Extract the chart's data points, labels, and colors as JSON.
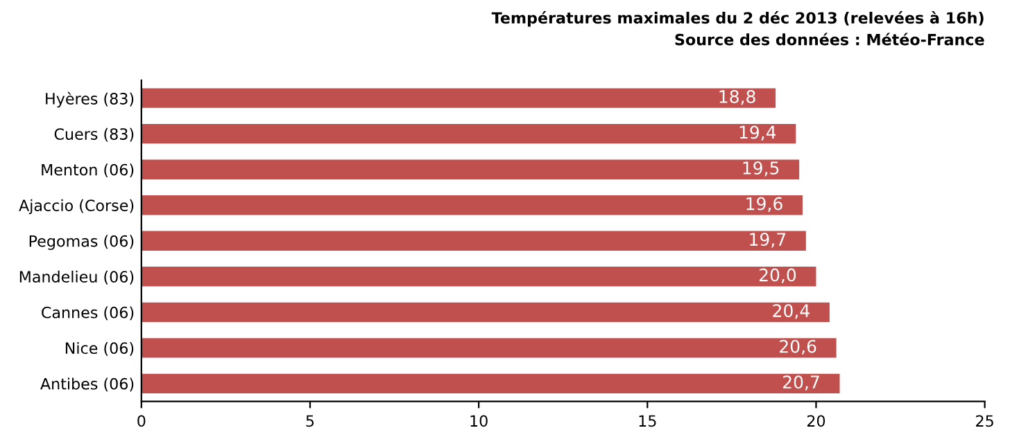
{
  "chart_data": {
    "type": "bar",
    "orientation": "horizontal",
    "title": "Températures maximales du 2 déc 2013 (relevées à 16h)",
    "annotations": [
      "Source des données : Météo-France"
    ],
    "categories": [
      "Hyères (83)",
      "Cuers (83)",
      "Menton (06)",
      "Ajaccio (Corse)",
      "Pegomas (06)",
      "Mandelieu (06)",
      "Cannes (06)",
      "Nice (06)",
      "Antibes (06)"
    ],
    "values": [
      18.8,
      19.4,
      19.5,
      19.6,
      19.7,
      20.0,
      20.4,
      20.6,
      20.7
    ],
    "value_labels": [
      "18,8",
      "19,4",
      "19,5",
      "19,6",
      "19,7",
      "20,0",
      "20,4",
      "20,6",
      "20,7"
    ],
    "color": "#c0504d",
    "xlim": [
      0,
      25
    ],
    "xticks": [
      0,
      5,
      10,
      15,
      20,
      25
    ],
    "grid": false,
    "legend": false
  }
}
